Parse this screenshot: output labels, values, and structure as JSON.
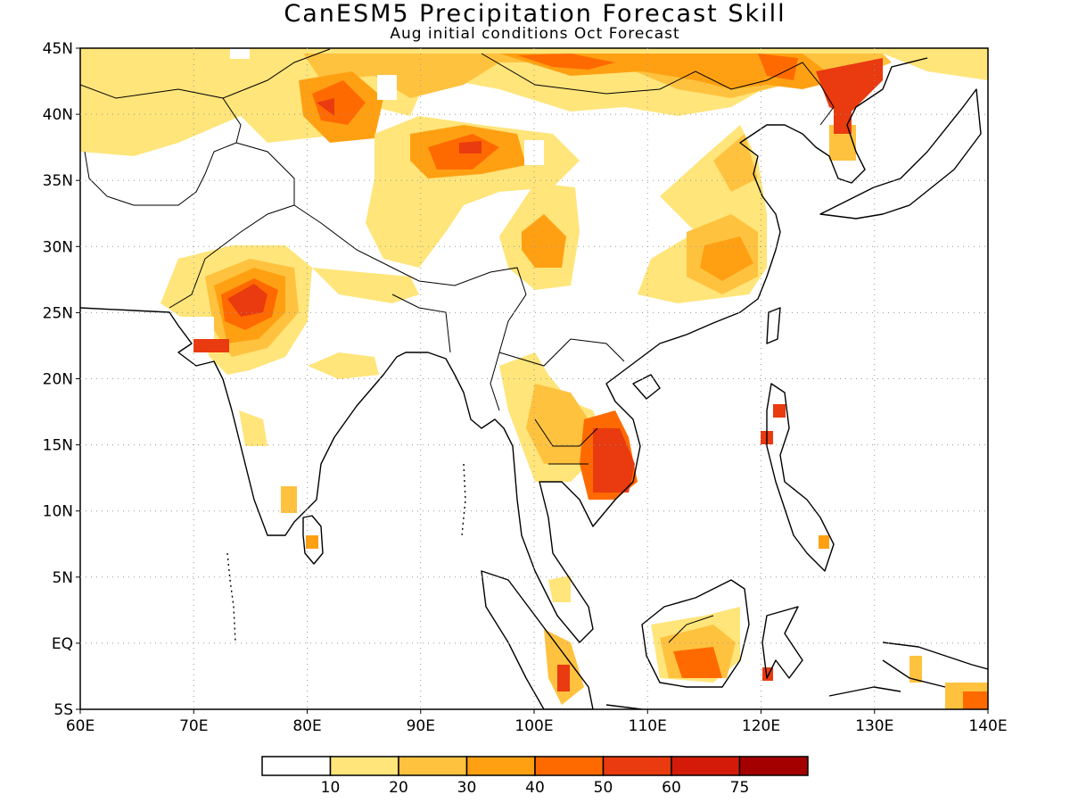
{
  "title": "CanESM5 Precipitation Forecast Skill",
  "subtitle": "Aug initial conditions  Oct Forecast",
  "map": {
    "lon_labels": [
      "60E",
      "70E",
      "80E",
      "90E",
      "100E",
      "110E",
      "120E",
      "130E",
      "140E"
    ],
    "lat_labels": [
      "45N",
      "40N",
      "35N",
      "30N",
      "25N",
      "20N",
      "15N",
      "10N",
      "5N",
      "EQ",
      "5S"
    ],
    "lon_range": [
      60,
      140
    ],
    "lat_range": [
      -5,
      45
    ],
    "grid": "dotted"
  },
  "colorbar": {
    "labels": [
      "10",
      "20",
      "30",
      "40",
      "50",
      "60",
      "75"
    ],
    "colors": [
      "#ffffff",
      "#ffe57a",
      "#ffc23f",
      "#ffa012",
      "#ff6a00",
      "#e93a10",
      "#d41b0a",
      "#a50000"
    ]
  }
}
